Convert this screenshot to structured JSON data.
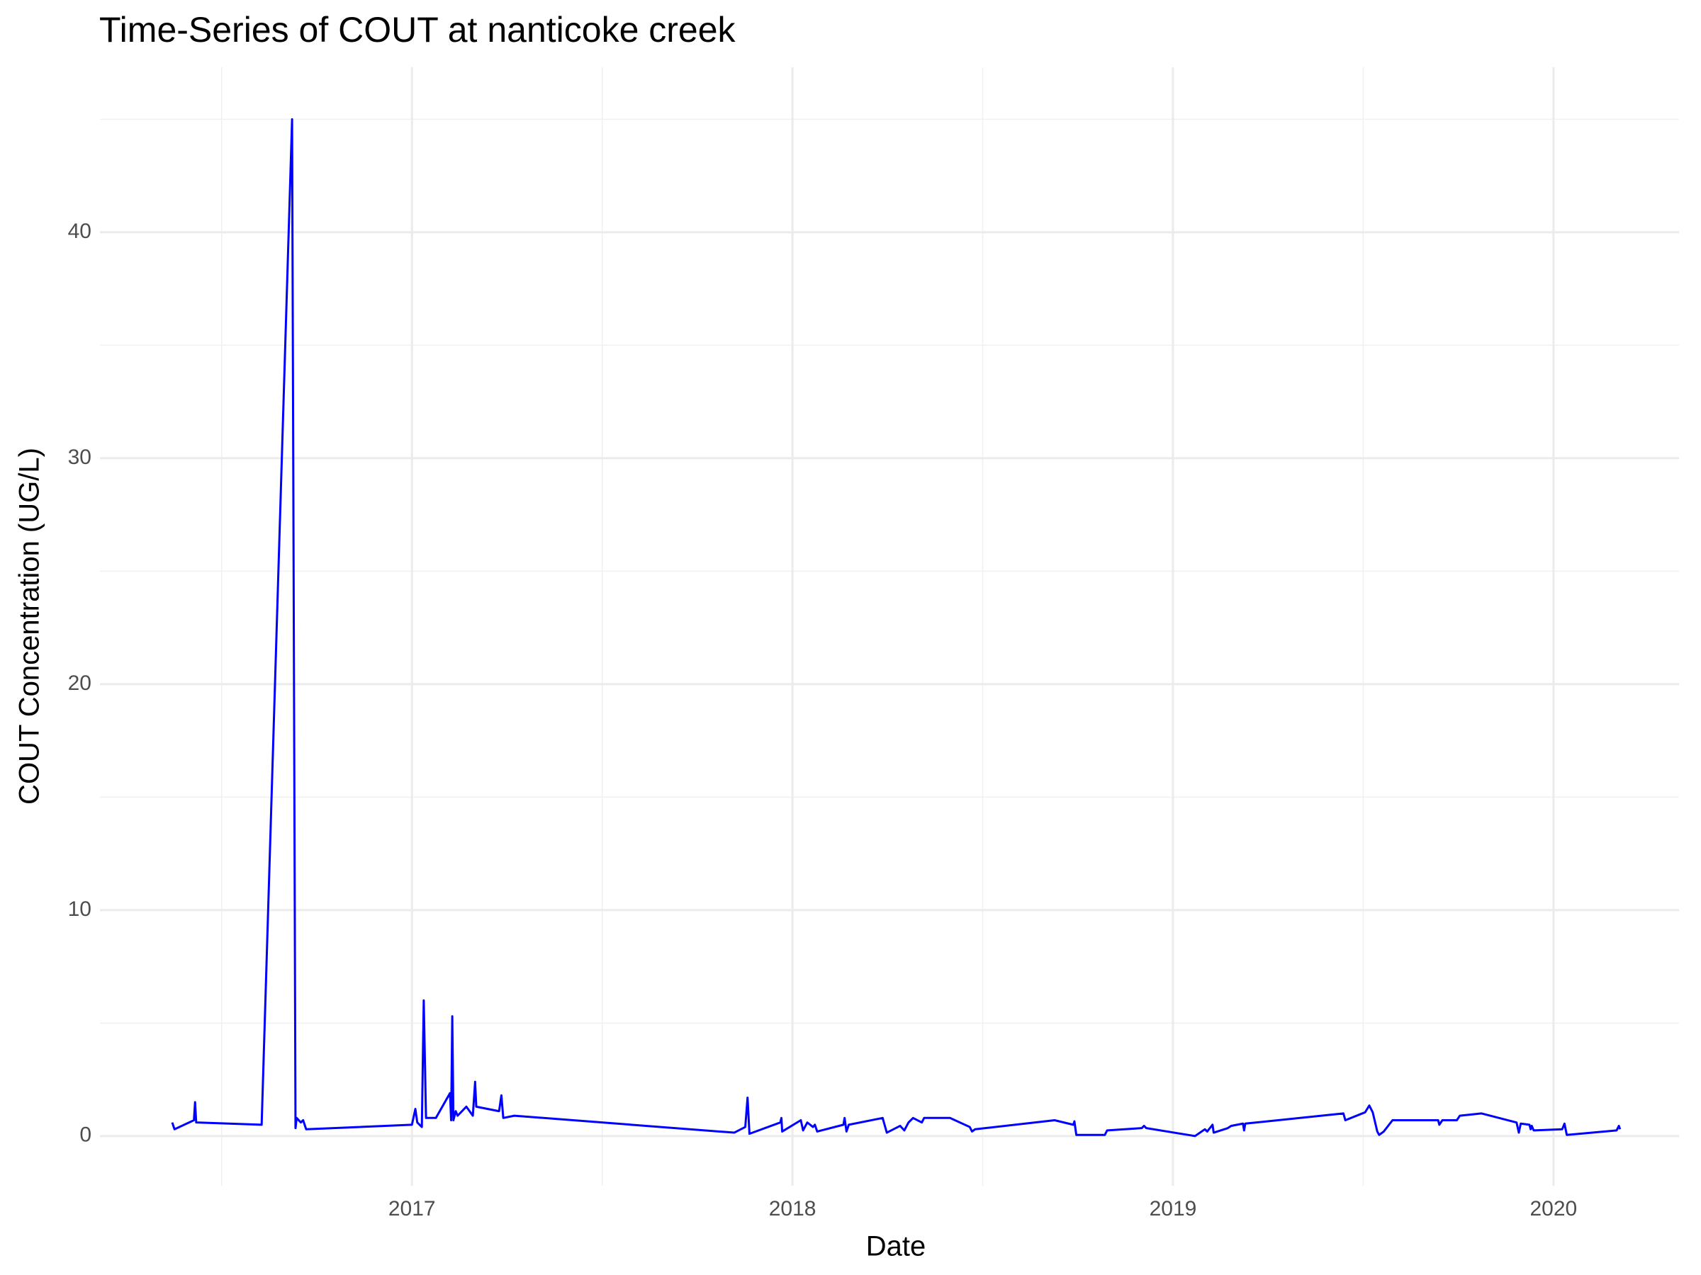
{
  "chart_data": {
    "type": "line",
    "title": "Time-Series of COUT at nanticoke creek",
    "x_label": "Date",
    "y_label": "COUT Concentration (UG/L)",
    "xlim": [
      2016.18,
      2020.33
    ],
    "ylim": [
      -2.2,
      47.3
    ],
    "xticks": [
      2017,
      2018,
      2019,
      2020
    ],
    "yticks": [
      0,
      10,
      20,
      30,
      40
    ],
    "xminor": [
      2016.5,
      2017.5,
      2018.5,
      2019.5
    ],
    "yminor": [
      5,
      15,
      25,
      35,
      45
    ],
    "grid": true,
    "series": [
      {
        "name": "COUT",
        "color": "#0000ff",
        "x": [
          2016.37,
          2016.376,
          2016.427,
          2016.43,
          2016.433,
          2016.605,
          2016.685,
          2016.694,
          2016.697,
          2016.708,
          2016.714,
          2016.722,
          2017.0,
          2017.009,
          2017.014,
          2017.026,
          2017.031,
          2017.037,
          2017.063,
          2017.1,
          2017.103,
          2017.106,
          2017.109,
          2017.115,
          2017.12,
          2017.143,
          2017.16,
          2017.166,
          2017.169,
          2017.229,
          2017.235,
          2017.24,
          2017.269,
          2017.847,
          2017.876,
          2017.882,
          2017.887,
          2017.968,
          2017.971,
          2017.973,
          2018.022,
          2018.028,
          2018.039,
          2018.054,
          2018.059,
          2018.065,
          2018.134,
          2018.137,
          2018.142,
          2018.148,
          2018.237,
          2018.248,
          2018.283,
          2018.294,
          2018.305,
          2018.317,
          2018.34,
          2018.346,
          2018.414,
          2018.466,
          2018.472,
          2018.48,
          2018.689,
          2018.738,
          2018.741,
          2018.746,
          2018.821,
          2018.827,
          2018.918,
          2018.924,
          2018.93,
          2019.058,
          2019.084,
          2019.09,
          2019.104,
          2019.107,
          2019.144,
          2019.153,
          2019.184,
          2019.187,
          2019.19,
          2019.448,
          2019.453,
          2019.505,
          2019.516,
          2019.525,
          2019.537,
          2019.542,
          2019.554,
          2019.577,
          2019.697,
          2019.7,
          2019.708,
          2019.746,
          2019.754,
          2019.811,
          2019.903,
          2019.909,
          2019.914,
          2019.937,
          2019.94,
          2019.943,
          2019.948,
          2020.023,
          2020.029,
          2020.035,
          2020.166,
          2020.172,
          2020.175
        ],
        "values": [
          0.6,
          0.3,
          0.7,
          1.5,
          0.6,
          0.5,
          45,
          0.35,
          0.8,
          0.6,
          0.7,
          0.3,
          0.5,
          1.2,
          0.6,
          0.4,
          6.0,
          0.8,
          0.8,
          1.9,
          0.7,
          5.3,
          0.7,
          1.1,
          0.9,
          1.3,
          0.9,
          2.4,
          1.3,
          1.1,
          1.8,
          0.8,
          0.9,
          0.15,
          0.4,
          1.7,
          0.1,
          0.6,
          0.8,
          0.2,
          0.7,
          0.25,
          0.6,
          0.4,
          0.5,
          0.2,
          0.5,
          0.8,
          0.2,
          0.5,
          0.8,
          0.15,
          0.45,
          0.25,
          0.6,
          0.8,
          0.6,
          0.8,
          0.8,
          0.4,
          0.2,
          0.3,
          0.7,
          0.5,
          0.65,
          0.05,
          0.05,
          0.25,
          0.35,
          0.45,
          0.35,
          0,
          0.3,
          0.2,
          0.5,
          0.15,
          0.35,
          0.45,
          0.55,
          0.25,
          0.55,
          1.0,
          0.7,
          1.05,
          1.35,
          1.05,
          0.2,
          0.05,
          0.2,
          0.7,
          0.7,
          0.5,
          0.7,
          0.7,
          0.9,
          1.0,
          0.6,
          0.15,
          0.55,
          0.5,
          0.3,
          0.45,
          0.25,
          0.3,
          0.55,
          0.05,
          0.25,
          0.45,
          0.3
        ]
      }
    ]
  }
}
